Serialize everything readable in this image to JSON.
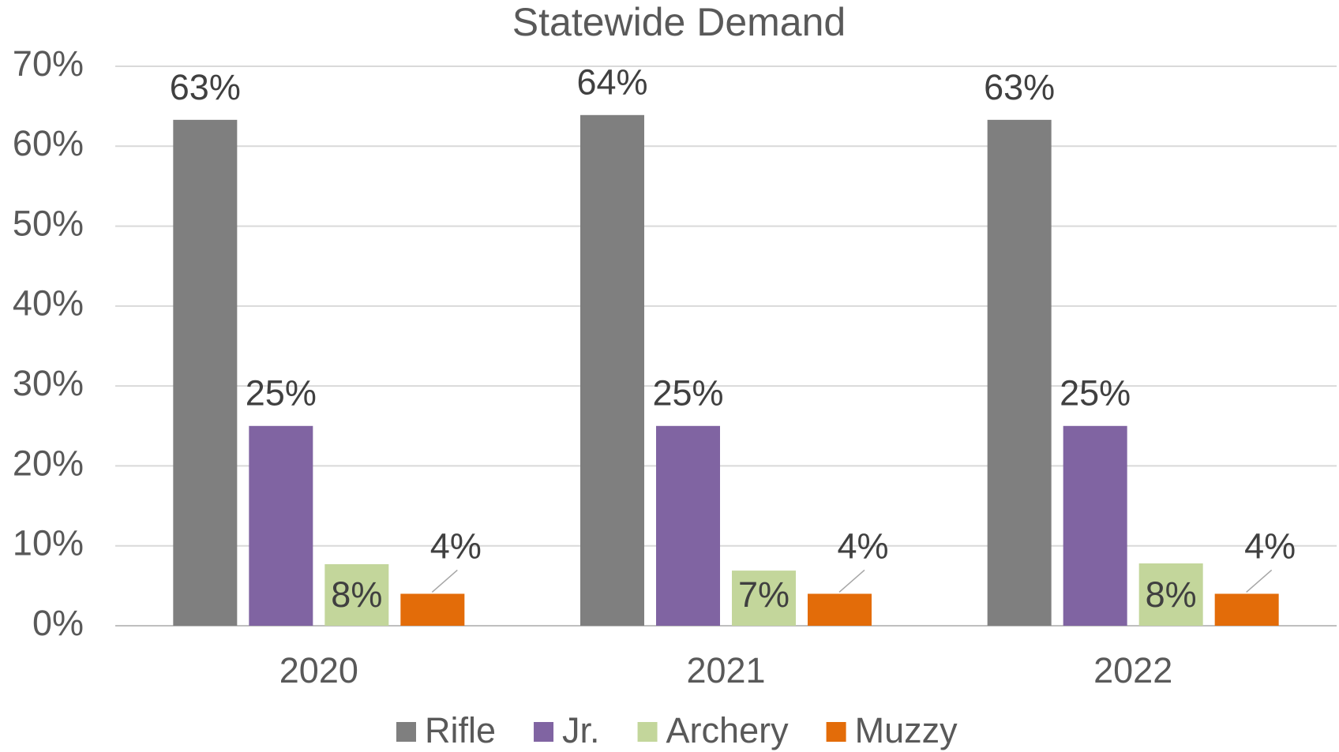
{
  "chart_data": {
    "type": "bar",
    "title": "Statewide Demand",
    "categories": [
      "2020",
      "2021",
      "2022"
    ],
    "series": [
      {
        "name": "Rifle",
        "color": "#7f7f7f",
        "values": [
          63.3,
          63.9,
          63.3
        ],
        "value_labels": [
          "63%",
          "64%",
          "63%"
        ]
      },
      {
        "name": "Jr.",
        "color": "#8064a2",
        "values": [
          25,
          25,
          25
        ],
        "value_labels": [
          "25%",
          "25%",
          "25%"
        ]
      },
      {
        "name": "Archery",
        "color": "#c3d69b",
        "values": [
          7.7,
          6.9,
          7.8
        ],
        "value_labels": [
          "8%",
          "7%",
          "8%"
        ]
      },
      {
        "name": "Muzzy",
        "color": "#e36c09",
        "values": [
          4,
          4,
          4
        ],
        "value_labels": [
          "4%",
          "4%",
          "4%"
        ]
      }
    ],
    "ylim": [
      0,
      70
    ],
    "yticks": [
      {
        "value": 0,
        "label": "0%"
      },
      {
        "value": 10,
        "label": "10%"
      },
      {
        "value": 20,
        "label": "20%"
      },
      {
        "value": 30,
        "label": "30%"
      },
      {
        "value": 40,
        "label": "40%"
      },
      {
        "value": 50,
        "label": "50%"
      },
      {
        "value": 60,
        "label": "60%"
      },
      {
        "value": 70,
        "label": "70%"
      }
    ],
    "grid": true,
    "legend": "bottom"
  }
}
